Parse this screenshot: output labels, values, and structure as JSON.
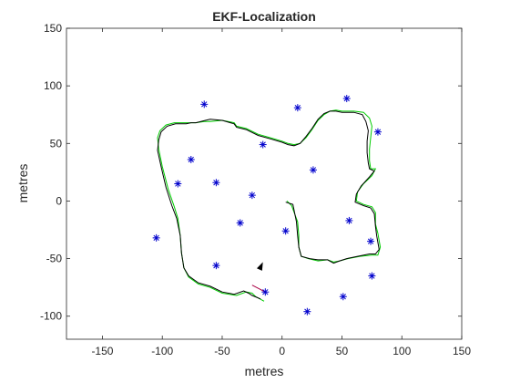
{
  "chart_data": {
    "type": "scatter",
    "title": "EKF-Localization",
    "xlabel": "metres",
    "ylabel": "metres",
    "xlim": [
      -180,
      150
    ],
    "ylim": [
      -120,
      150
    ],
    "xticks": [
      -150,
      -100,
      -50,
      0,
      50,
      100,
      150
    ],
    "yticks": [
      -100,
      -50,
      0,
      50,
      100,
      150
    ],
    "grid": false,
    "legend": "none",
    "colors": {
      "landmarks": "#0000cc",
      "true_path": "#00cc00",
      "estimated_path": "#000000",
      "robot": "#000000",
      "observation": "#aa0044"
    },
    "landmarks": {
      "marker": "asterisk",
      "x": [
        -65,
        13,
        54,
        80,
        -16,
        -76,
        26,
        -87,
        -55,
        -25,
        -35,
        56,
        3,
        74,
        -105,
        -55,
        75,
        -14,
        51,
        21
      ],
      "y": [
        84,
        81,
        89,
        60,
        49,
        36,
        27,
        15,
        16,
        5,
        -19,
        -17,
        -26,
        -35,
        -32,
        -56,
        -65,
        -79,
        -83,
        -96
      ]
    },
    "true_path": {
      "x": [
        -15,
        -22,
        -25,
        -30,
        -38,
        -50,
        -60,
        -70,
        -78,
        -82,
        -84,
        -85,
        -87,
        -90,
        -95,
        -100,
        -103,
        -104,
        -102,
        -97,
        -90,
        -84,
        -80,
        -76,
        -72,
        -65,
        -60,
        -50,
        -40,
        -38,
        -30,
        -20,
        -10,
        0,
        5,
        10,
        15,
        20,
        25,
        30,
        35,
        40,
        45,
        50,
        60,
        68,
        73,
        75,
        74,
        73,
        73,
        74,
        78,
        75,
        68,
        63,
        62,
        68,
        75,
        78,
        78,
        80,
        82,
        80,
        75,
        65,
        55,
        48,
        43,
        38,
        30,
        22,
        16,
        14,
        14,
        13,
        8,
        4
      ],
      "y": [
        -87,
        -83,
        -80,
        -79,
        -82,
        -80,
        -75,
        -72,
        -66,
        -58,
        -45,
        -30,
        -15,
        -5,
        10,
        30,
        45,
        55,
        61,
        66,
        68,
        68,
        68,
        68,
        68,
        69,
        69,
        70,
        68,
        65,
        63,
        58,
        55,
        52,
        50,
        49,
        50,
        55,
        62,
        70,
        75,
        78,
        79,
        78,
        78,
        77,
        72,
        65,
        55,
        45,
        35,
        28,
        28,
        22,
        15,
        8,
        0,
        -3,
        -5,
        -10,
        -20,
        -28,
        -40,
        -47,
        -47,
        -48,
        -50,
        -52,
        -53,
        -51,
        -52,
        -50,
        -48,
        -40,
        -30,
        -18,
        -4,
        0
      ]
    },
    "estimated_path": {
      "x": [
        -18,
        -25,
        -28,
        -32,
        -40,
        -50,
        -60,
        -70,
        -78,
        -82,
        -84,
        -85,
        -88,
        -92,
        -97,
        -101,
        -104,
        -103,
        -101,
        -96,
        -89,
        -83,
        -80,
        -76,
        -72,
        -64,
        -60,
        -50,
        -40,
        -38,
        -30,
        -20,
        -10,
        0,
        5,
        10,
        15,
        20,
        25,
        30,
        35,
        40,
        45,
        50,
        60,
        67,
        70,
        72,
        71,
        71,
        72,
        73,
        77,
        73,
        66,
        62,
        61,
        68,
        74,
        77,
        78,
        79,
        81,
        78,
        73,
        63,
        54,
        48,
        43,
        38,
        30,
        23,
        16,
        14,
        13,
        12,
        9,
        3
      ],
      "y": [
        -85,
        -82,
        -80,
        -78,
        -81,
        -79,
        -74,
        -71,
        -65,
        -58,
        -45,
        -30,
        -15,
        -4,
        12,
        30,
        44,
        53,
        60,
        65,
        67,
        67,
        67,
        68,
        68,
        70,
        71,
        70,
        67,
        64,
        62,
        57,
        54,
        51,
        49,
        48,
        50,
        56,
        63,
        71,
        76,
        78,
        78,
        77,
        77,
        75,
        69,
        61,
        52,
        42,
        33,
        28,
        26,
        21,
        13,
        6,
        -1,
        -4,
        -6,
        -11,
        -22,
        -30,
        -42,
        -46,
        -46,
        -48,
        -50,
        -52,
        -54,
        -51,
        -51,
        -50,
        -48,
        -40,
        -30,
        -18,
        -3,
        -1
      ]
    },
    "robot": {
      "x": -16,
      "y": -53,
      "heading_deg": 65
    },
    "observation": {
      "x1": -25,
      "y1": -73,
      "x2": -14,
      "y2": -79
    }
  }
}
